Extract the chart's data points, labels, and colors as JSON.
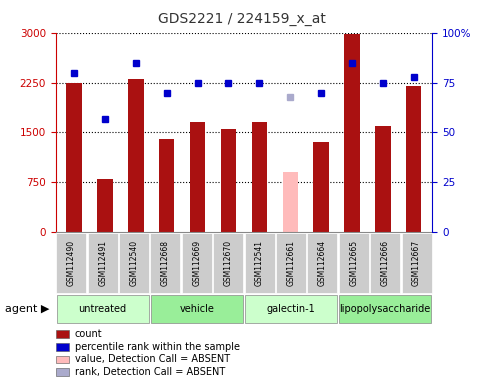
{
  "title": "GDS2221 / 224159_x_at",
  "samples": [
    "GSM112490",
    "GSM112491",
    "GSM112540",
    "GSM112668",
    "GSM112669",
    "GSM112670",
    "GSM112541",
    "GSM112661",
    "GSM112664",
    "GSM112665",
    "GSM112666",
    "GSM112667"
  ],
  "counts": [
    2250,
    800,
    2300,
    1400,
    1650,
    1550,
    1650,
    900,
    1350,
    2980,
    1600,
    2200
  ],
  "counts_absent": [
    false,
    false,
    false,
    false,
    false,
    false,
    false,
    true,
    false,
    false,
    false,
    false
  ],
  "ranks": [
    80,
    57,
    85,
    70,
    75,
    75,
    75,
    68,
    70,
    85,
    75,
    78
  ],
  "ranks_absent": [
    false,
    false,
    false,
    false,
    false,
    false,
    false,
    true,
    false,
    false,
    false,
    false
  ],
  "groups": [
    {
      "label": "untreated",
      "start": 0,
      "end": 3
    },
    {
      "label": "vehicle",
      "start": 3,
      "end": 6
    },
    {
      "label": "galectin-1",
      "start": 6,
      "end": 9
    },
    {
      "label": "lipopolysaccharide",
      "start": 9,
      "end": 12
    }
  ],
  "ylim_left": [
    0,
    3000
  ],
  "ylim_right": [
    0,
    100
  ],
  "yticks_left": [
    0,
    750,
    1500,
    2250,
    3000
  ],
  "yticks_right": [
    0,
    25,
    50,
    75,
    100
  ],
  "bar_color_present": "#aa1111",
  "bar_color_absent": "#ffbbbb",
  "dot_color_present": "#0000cc",
  "dot_color_absent": "#aaaacc",
  "group_colors": [
    "#ccffcc",
    "#99ee99",
    "#ccffcc",
    "#99ee99"
  ],
  "grid_color": "#000000",
  "title_color": "#333333",
  "left_axis_color": "#cc0000",
  "right_axis_color": "#0000cc",
  "legend_items": [
    {
      "label": "count",
      "color": "#aa1111"
    },
    {
      "label": "percentile rank within the sample",
      "color": "#0000cc"
    },
    {
      "label": "value, Detection Call = ABSENT",
      "color": "#ffbbbb"
    },
    {
      "label": "rank, Detection Call = ABSENT",
      "color": "#aaaacc"
    }
  ]
}
